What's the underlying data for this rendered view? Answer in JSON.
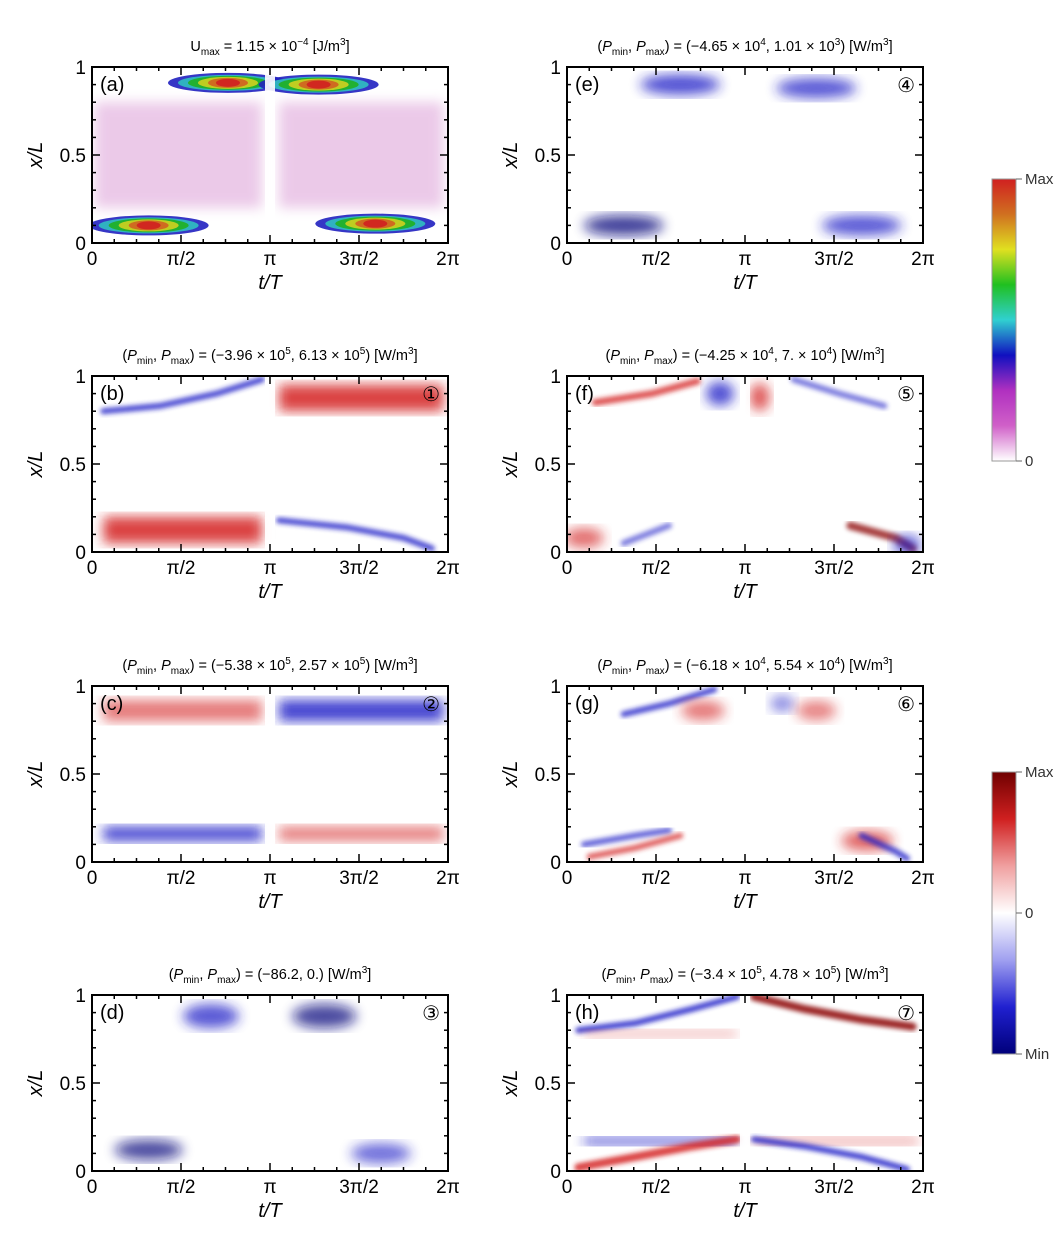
{
  "chart_data": [
    {
      "id": "a",
      "type": "heatmap",
      "panel_label": "(a)",
      "title_pre": "U",
      "title_sub": "max",
      "title_eq": " = 1.15 × 10",
      "title_exp": "−4",
      "title_post": " [J/m",
      "title_unit_exp": "3",
      "title_end": "]",
      "colormap": "rainbow",
      "scale_min": 0,
      "scale_max": "1.15e-4",
      "xlabel": "t/T",
      "ylabel": "x/L",
      "xlim": [
        0,
        6.2832
      ],
      "ylim": [
        0,
        1
      ]
    },
    {
      "id": "b",
      "type": "heatmap",
      "panel_label": "(b)",
      "circled_number": "①",
      "pmin": "−3.96",
      "pmin_exp": "5",
      "pmax": "6.13",
      "pmax_exp": "5",
      "units": "W/m³",
      "colormap": "diverging",
      "xlabel": "t/T",
      "ylabel": "x/L",
      "xlim": [
        0,
        6.2832
      ],
      "ylim": [
        0,
        1
      ]
    },
    {
      "id": "c",
      "type": "heatmap",
      "panel_label": "(c)",
      "circled_number": "②",
      "pmin": "−5.38",
      "pmin_exp": "5",
      "pmax": "2.57",
      "pmax_exp": "5",
      "units": "W/m³",
      "colormap": "diverging",
      "xlabel": "t/T",
      "ylabel": "x/L",
      "xlim": [
        0,
        6.2832
      ],
      "ylim": [
        0,
        1
      ]
    },
    {
      "id": "d",
      "type": "heatmap",
      "panel_label": "(d)",
      "circled_number": "③",
      "pmin": "−86.2",
      "pmin_exp": "",
      "pmax": "0.",
      "pmax_exp": "",
      "units": "W/m³",
      "colormap": "diverging",
      "xlabel": "t/T",
      "ylabel": "x/L",
      "xlim": [
        0,
        6.2832
      ],
      "ylim": [
        0,
        1
      ]
    },
    {
      "id": "e",
      "type": "heatmap",
      "panel_label": "(e)",
      "circled_number": "④",
      "pmin": "−4.65",
      "pmin_exp": "4",
      "pmax": "1.01",
      "pmax_exp": "3",
      "units": "W/m³",
      "colormap": "diverging",
      "xlabel": "t/T",
      "ylabel": "x/L",
      "xlim": [
        0,
        6.2832
      ],
      "ylim": [
        0,
        1
      ]
    },
    {
      "id": "f",
      "type": "heatmap",
      "panel_label": "(f)",
      "circled_number": "⑤",
      "pmin": "−4.25",
      "pmin_exp": "4",
      "pmax": "7.",
      "pmax_exp": "4",
      "units": "W/m³",
      "colormap": "diverging",
      "xlabel": "t/T",
      "ylabel": "x/L",
      "xlim": [
        0,
        6.2832
      ],
      "ylim": [
        0,
        1
      ]
    },
    {
      "id": "g",
      "type": "heatmap",
      "panel_label": "(g)",
      "circled_number": "⑥",
      "pmin": "−6.18",
      "pmin_exp": "4",
      "pmax": "5.54",
      "pmax_exp": "4",
      "units": "W/m³",
      "colormap": "diverging",
      "xlabel": "t/T",
      "ylabel": "x/L",
      "xlim": [
        0,
        6.2832
      ],
      "ylim": [
        0,
        1
      ]
    },
    {
      "id": "h",
      "type": "heatmap",
      "panel_label": "(h)",
      "circled_number": "⑦",
      "pmin": "−3.4",
      "pmin_exp": "5",
      "pmax": "4.78",
      "pmax_exp": "5",
      "units": "W/m³",
      "colormap": "diverging",
      "xlabel": "t/T",
      "ylabel": "x/L",
      "xlim": [
        0,
        6.2832
      ],
      "ylim": [
        0,
        1
      ]
    }
  ],
  "axes": {
    "x_ticks": [
      "0",
      "π/2",
      "π",
      "3π/2",
      "2π"
    ],
    "y_ticks": [
      "0",
      "0.5",
      "1"
    ],
    "xlabel": "t/T",
    "ylabel": "x/L"
  },
  "title_parts": {
    "open": "(",
    "pmin": "P",
    "min": "min",
    "sep": ", ",
    "max": "max",
    "close": ") = (",
    "times": " × 10",
    "comma": ", ",
    "unit_open": ") [W/m",
    "unit_exp": "3",
    "unit_close": "]"
  },
  "colorbars": {
    "rainbow": {
      "max_label": "Max",
      "min_label": "0",
      "colors": [
        "#ffffff",
        "#d060c8",
        "#b030c0",
        "#1010c0",
        "#30d0d0",
        "#20c020",
        "#e0e020",
        "#d07020",
        "#d02020"
      ]
    },
    "diverging": {
      "max_label": "Max",
      "mid_label": "0",
      "min_label": "Min",
      "colors": [
        "#00007a",
        "#2020d0",
        "#a0a0f0",
        "#ffffff",
        "#f0a0a0",
        "#d02020",
        "#700000"
      ]
    }
  },
  "colors": {
    "red": "#d42020",
    "blue": "#2020c8",
    "dark_red": "#8a0000",
    "dark_blue": "#0a0a80"
  }
}
